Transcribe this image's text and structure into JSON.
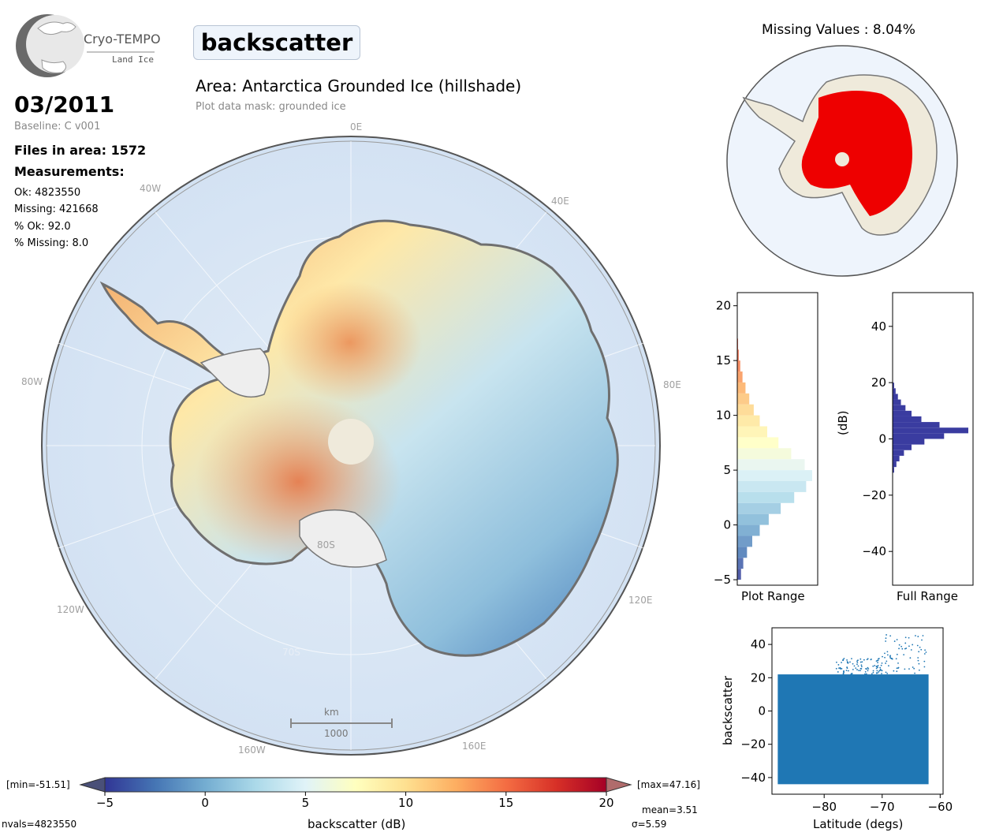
{
  "logo": {
    "name": "Cryo-TEMPO",
    "subtitle": "Land Ice"
  },
  "parameter": "backscatter",
  "area_title": "Area: Antarctica Grounded Ice (hillshade)",
  "mask_note": "Plot data mask: grounded ice",
  "date": "03/2011",
  "baseline": "Baseline: C v001",
  "files_in_area": "Files in area: 1572",
  "measurements_heading": "Measurements:",
  "stats": {
    "ok": "Ok: 4823550",
    "missing": "Missing: 421668",
    "pct_ok": "% Ok: 92.0",
    "pct_missing": "% Missing: 8.0"
  },
  "map": {
    "lon_labels": [
      "0E",
      "40E",
      "80E",
      "120E",
      "160E",
      "160W",
      "120W",
      "80W",
      "40W"
    ],
    "lat_labels": [
      "80S",
      "70S"
    ],
    "scalebar_unit": "km",
    "scalebar_value": "1000"
  },
  "missing_map": {
    "title": "Missing Values : 8.04%"
  },
  "colorbar": {
    "label": "backscatter (dB)",
    "ticks": [
      "-5",
      "0",
      "5",
      "10",
      "15",
      "20"
    ],
    "min_label": "[min=-51.51]",
    "max_label": "[max=47.16]",
    "nvals": "nvals=4823550",
    "mean": "mean=3.51",
    "sigma": "σ=5.59",
    "colors": [
      "#313695",
      "#4575b4",
      "#74add1",
      "#abd9e9",
      "#e0f3f8",
      "#ffffbf",
      "#fee090",
      "#fdae61",
      "#f46d43",
      "#d73027",
      "#a50026"
    ]
  },
  "chart_data": [
    {
      "type": "bar",
      "orientation": "horizontal",
      "xlabel": "Plot Range",
      "ylabel": "",
      "ylim": [
        -5.5,
        21.2
      ],
      "yticks": [
        "20",
        "15",
        "10",
        "5",
        "0",
        "−5"
      ],
      "bins": [
        -5,
        -4,
        -3,
        -2,
        -1,
        0,
        1,
        2,
        3,
        4,
        5,
        6,
        7,
        8,
        9,
        10,
        11,
        12,
        13,
        14,
        15,
        16
      ],
      "values": [
        0.05,
        0.08,
        0.13,
        0.2,
        0.3,
        0.42,
        0.58,
        0.76,
        0.92,
        1.0,
        0.9,
        0.72,
        0.55,
        0.4,
        0.3,
        0.22,
        0.16,
        0.11,
        0.07,
        0.04,
        0.02,
        0.01
      ]
    },
    {
      "type": "bar",
      "orientation": "horizontal",
      "xlabel": "Full Range",
      "ylabel": "(dB)",
      "ylim": [
        -52,
        52
      ],
      "yticks": [
        "40",
        "20",
        "0",
        "−20",
        "−40"
      ],
      "color": "#3a3ca0",
      "bins": [
        -12,
        -10,
        -8,
        -6,
        -4,
        -2,
        0,
        2,
        4,
        6,
        8,
        10,
        12,
        14,
        16,
        18
      ],
      "values": [
        0.02,
        0.05,
        0.09,
        0.15,
        0.25,
        0.42,
        0.68,
        1.0,
        0.62,
        0.38,
        0.25,
        0.17,
        0.11,
        0.07,
        0.04,
        0.02
      ]
    },
    {
      "type": "scatter",
      "xlabel": "Latitude (degs)",
      "ylabel": "backscatter",
      "xlim": [
        -89,
        -59.5
      ],
      "ylim": [
        -50,
        50
      ],
      "xticks": [
        "−80",
        "−70",
        "−60"
      ],
      "yticks": [
        "40",
        "20",
        "0",
        "−20",
        "−40"
      ],
      "color": "#1f77b4",
      "band": {
        "x_min": -88,
        "x_max": -62,
        "y_low": -44,
        "y_high": 22
      }
    }
  ]
}
